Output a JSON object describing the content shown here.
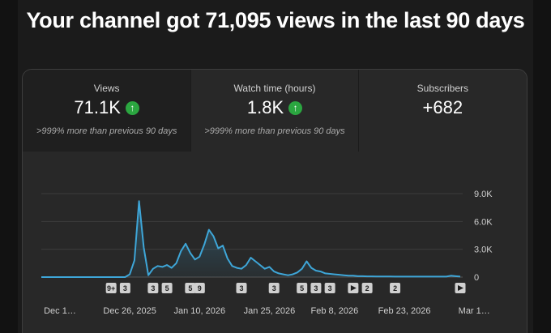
{
  "headline": "Your channel got 71,095 views in the last 90 days",
  "cards": [
    {
      "label": "Views",
      "value": "71.1K",
      "trend": "up",
      "note": ">999% more than previous 90 days"
    },
    {
      "label": "Watch time (hours)",
      "value": "1.8K",
      "trend": "up",
      "note": ">999% more than previous 90 days"
    },
    {
      "label": "Subscribers",
      "value": "+682",
      "trend": "",
      "note": ""
    }
  ],
  "colors": {
    "line": "#3ea6d8",
    "up_badge": "#2ba640",
    "background": "#1b1b1b",
    "panel": "#282828"
  },
  "chart_data": {
    "type": "area",
    "title": "",
    "xlabel": "",
    "ylabel": "",
    "ylim": [
      0,
      9000
    ],
    "y_ticks": [
      {
        "value": 9000,
        "label": "9.0K"
      },
      {
        "value": 6000,
        "label": "6.0K"
      },
      {
        "value": 3000,
        "label": "3.0K"
      },
      {
        "value": 0,
        "label": "0"
      }
    ],
    "x_ticks": [
      {
        "date": "2025-12-11",
        "label": "Dec 1…"
      },
      {
        "date": "2025-12-26",
        "label": "Dec 26, 2025"
      },
      {
        "date": "2026-01-10",
        "label": "Jan 10, 2026"
      },
      {
        "date": "2026-01-25",
        "label": "Jan 25, 2026"
      },
      {
        "date": "2026-02-08",
        "label": "Feb 8, 2026"
      },
      {
        "date": "2026-02-23",
        "label": "Feb 23, 2026"
      },
      {
        "date": "2026-03-10",
        "label": "Mar 1…"
      }
    ],
    "x": [
      "2025-12-07",
      "2025-12-08",
      "2025-12-09",
      "2025-12-10",
      "2025-12-11",
      "2025-12-12",
      "2025-12-13",
      "2025-12-14",
      "2025-12-15",
      "2025-12-16",
      "2025-12-17",
      "2025-12-18",
      "2025-12-19",
      "2025-12-20",
      "2025-12-21",
      "2025-12-22",
      "2025-12-23",
      "2025-12-24",
      "2025-12-25",
      "2025-12-26",
      "2025-12-27",
      "2025-12-28",
      "2025-12-29",
      "2025-12-30",
      "2025-12-31",
      "2026-01-01",
      "2026-01-02",
      "2026-01-03",
      "2026-01-04",
      "2026-01-05",
      "2026-01-06",
      "2026-01-07",
      "2026-01-08",
      "2026-01-09",
      "2026-01-10",
      "2026-01-11",
      "2026-01-12",
      "2026-01-13",
      "2026-01-14",
      "2026-01-15",
      "2026-01-16",
      "2026-01-17",
      "2026-01-18",
      "2026-01-19",
      "2026-01-20",
      "2026-01-21",
      "2026-01-22",
      "2026-01-23",
      "2026-01-24",
      "2026-01-25",
      "2026-01-26",
      "2026-01-27",
      "2026-01-28",
      "2026-01-29",
      "2026-01-30",
      "2026-01-31",
      "2026-02-01",
      "2026-02-02",
      "2026-02-03",
      "2026-02-04",
      "2026-02-05",
      "2026-02-06",
      "2026-02-07",
      "2026-02-08",
      "2026-02-09",
      "2026-02-10",
      "2026-02-11",
      "2026-02-12",
      "2026-02-13",
      "2026-02-14",
      "2026-02-15",
      "2026-02-16",
      "2026-02-17",
      "2026-02-18",
      "2026-02-19",
      "2026-02-20",
      "2026-02-21",
      "2026-02-22",
      "2026-02-23",
      "2026-02-24",
      "2026-02-25",
      "2026-02-26",
      "2026-02-27",
      "2026-02-28",
      "2026-03-01",
      "2026-03-02",
      "2026-03-03",
      "2026-03-04",
      "2026-03-05",
      "2026-03-06",
      "2026-03-07"
    ],
    "series": [
      {
        "values": [
          0,
          0,
          0,
          0,
          0,
          0,
          0,
          0,
          0,
          0,
          0,
          0,
          0,
          0,
          0,
          0,
          0,
          0,
          0,
          300,
          1800,
          8200,
          3200,
          200,
          900,
          1200,
          1100,
          1300,
          1000,
          1500,
          2800,
          3600,
          2600,
          1900,
          2200,
          3500,
          5100,
          4400,
          3100,
          3400,
          2000,
          1200,
          1000,
          900,
          1300,
          2100,
          1700,
          1300,
          900,
          1100,
          600,
          400,
          300,
          200,
          300,
          500,
          900,
          1700,
          1000,
          700,
          600,
          400,
          350,
          300,
          250,
          200,
          150,
          150,
          100,
          100,
          80,
          80,
          60,
          60,
          60,
          60,
          50,
          50,
          50,
          50,
          50,
          50,
          50,
          50,
          50,
          50,
          50,
          50,
          150,
          100,
          50
        ]
      }
    ],
    "grid": true,
    "legend": "none",
    "annotations": [
      {
        "date": "2025-12-22",
        "label": "9+"
      },
      {
        "date": "2025-12-25",
        "label": "3"
      },
      {
        "date": "2025-12-31",
        "label": "3"
      },
      {
        "date": "2026-01-03",
        "label": "5"
      },
      {
        "date": "2026-01-08",
        "label": "5"
      },
      {
        "date": "2026-01-10",
        "label": "9"
      },
      {
        "date": "2026-01-19",
        "label": "3"
      },
      {
        "date": "2026-01-26",
        "label": "3"
      },
      {
        "date": "2026-02-01",
        "label": "5"
      },
      {
        "date": "2026-02-04",
        "label": "3"
      },
      {
        "date": "2026-02-07",
        "label": "3"
      },
      {
        "date": "2026-02-12",
        "label": "play"
      },
      {
        "date": "2026-02-15",
        "label": "2"
      },
      {
        "date": "2026-02-21",
        "label": "2"
      },
      {
        "date": "2026-03-07",
        "label": "play"
      }
    ]
  }
}
